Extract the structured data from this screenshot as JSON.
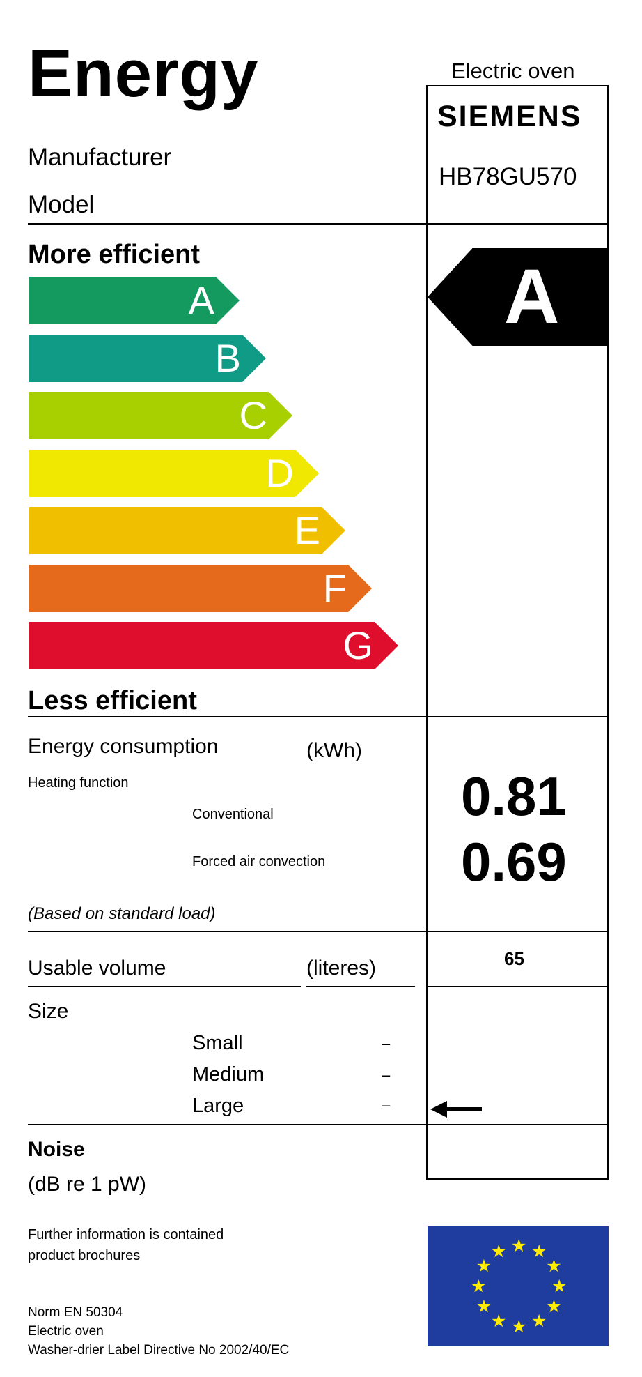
{
  "header": {
    "title": "Energy",
    "appliance_type": "Electric oven",
    "manufacturer_label": "Manufacturer",
    "model_label": "Model",
    "brand": "SIEMENS",
    "model": "HB78GU570"
  },
  "scale": {
    "more_efficient": "More efficient",
    "less_efficient": "Less efficient",
    "classes": [
      {
        "label": "A",
        "color": "#149a5e"
      },
      {
        "label": "B",
        "color": "#0f9b86"
      },
      {
        "label": "C",
        "color": "#a8d000"
      },
      {
        "label": "D",
        "color": "#f0e800"
      },
      {
        "label": "E",
        "color": "#f0c000"
      },
      {
        "label": "F",
        "color": "#e56a1b"
      },
      {
        "label": "G",
        "color": "#df0e2c"
      }
    ],
    "rating": "A"
  },
  "energy": {
    "label": "Energy consumption",
    "unit": "(kWh)",
    "heating_function": "Heating function",
    "conventional_label": "Conventional",
    "conventional_value": "0.81",
    "forced_label": "Forced air convection",
    "forced_value": "0.69",
    "note": "(Based on standard load)"
  },
  "volume": {
    "label": "Usable volume",
    "unit": "(literes)",
    "value": "65"
  },
  "size": {
    "label": "Size",
    "options": [
      {
        "label": "Small",
        "mark": "–"
      },
      {
        "label": "Medium",
        "mark": "–"
      },
      {
        "label": "Large",
        "mark": "–"
      }
    ],
    "selected": "Large"
  },
  "noise": {
    "label": "Noise",
    "unit": "(dB re 1 pW)"
  },
  "footer": {
    "info_line1": "Further information is contained",
    "info_line2": "product brochures",
    "norm": "Norm EN 50304",
    "appliance": "Electric oven",
    "directive": "Washer-drier Label Directive No 2002/40/EC"
  }
}
